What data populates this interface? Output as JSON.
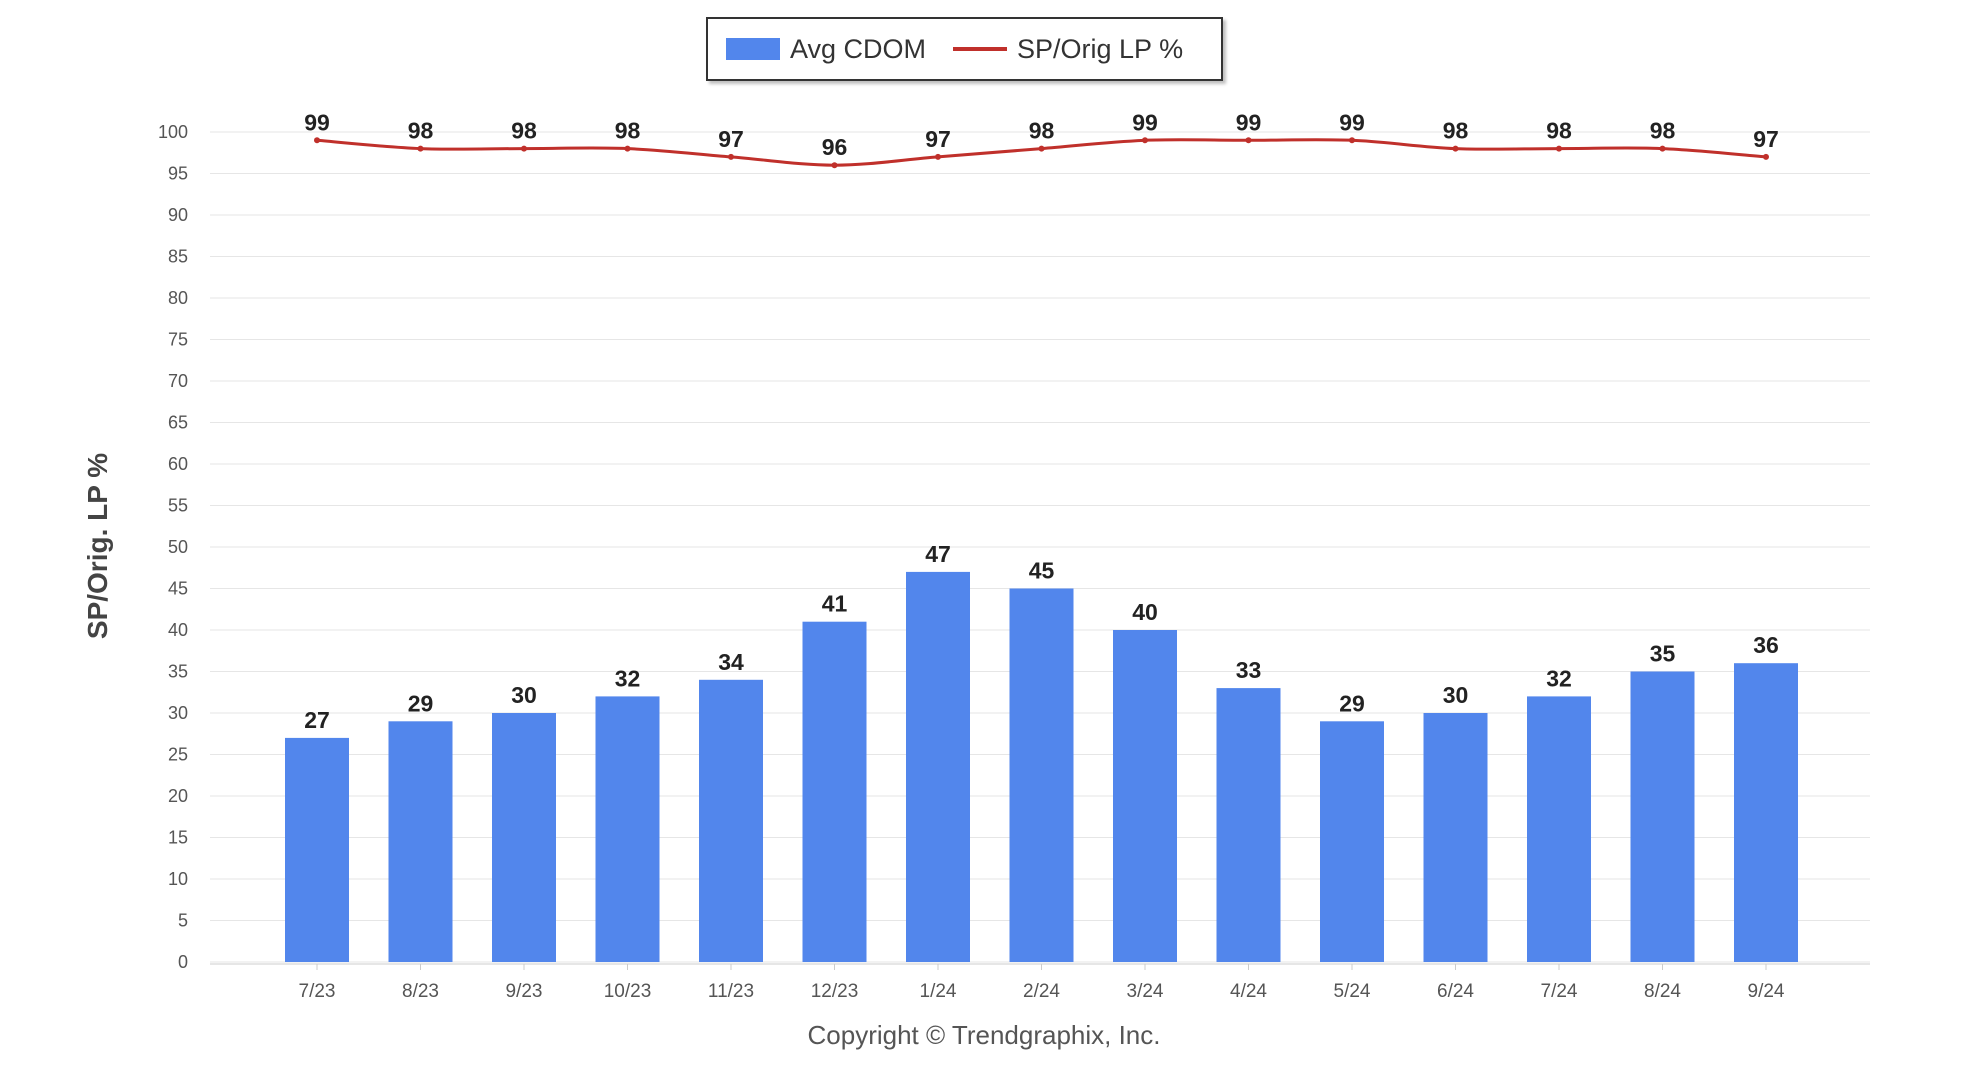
{
  "chart_data": {
    "type": "bar",
    "categories": [
      "7/23",
      "8/23",
      "9/23",
      "10/23",
      "11/23",
      "12/23",
      "1/24",
      "2/24",
      "3/24",
      "4/24",
      "5/24",
      "6/24",
      "7/24",
      "8/24",
      "9/24"
    ],
    "series": [
      {
        "name": "Avg CDOM",
        "type": "bar",
        "color": "#5286ec",
        "values": [
          27,
          29,
          30,
          32,
          34,
          41,
          47,
          45,
          40,
          33,
          29,
          30,
          32,
          35,
          36
        ]
      },
      {
        "name": "SP/Orig LP %",
        "type": "line",
        "color": "#c0302b",
        "values": [
          99,
          98,
          98,
          98,
          97,
          96,
          97,
          98,
          99,
          99,
          99,
          98,
          98,
          98,
          97
        ]
      }
    ],
    "ylabel": "SP/Orig. LP %",
    "ylim": [
      0,
      100
    ],
    "yticks": [
      0,
      5,
      10,
      15,
      20,
      25,
      30,
      35,
      40,
      45,
      50,
      55,
      60,
      65,
      70,
      75,
      80,
      85,
      90,
      95,
      100
    ],
    "grid": true,
    "legend_position": "top-center"
  },
  "footer": {
    "copyright": "Copyright © Trendgraphix, Inc."
  }
}
